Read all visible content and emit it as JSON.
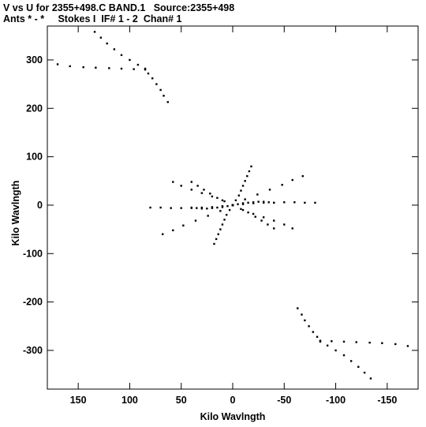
{
  "header": {
    "line1": "V vs U for 2355+498.C BAND.1   Source:2355+498",
    "line2": "Ants * - *     Stokes I  IF# 1 - 2  Chan# 1"
  },
  "chart_data": {
    "type": "scatter",
    "title": "V vs U for 2355+498.C BAND.1   Source:2355+498",
    "subtitle": "Ants * - *     Stokes I  IF# 1 - 2  Chan# 1",
    "xlabel": "Kilo Wavlngth",
    "ylabel": "Kilo Wavlngth",
    "xlim": [
      180,
      -180
    ],
    "ylim": [
      -380,
      370
    ],
    "x_axis_reversed": true,
    "xticks": [
      150,
      100,
      50,
      0,
      -50,
      -100,
      -150
    ],
    "xtick_labels": [
      "150",
      "100",
      "50",
      "0",
      "-50",
      "-100",
      "-150"
    ],
    "yticks": [
      300,
      200,
      100,
      0,
      -100,
      -200,
      -300
    ],
    "ytick_labels": [
      "300",
      "200",
      "100",
      "0",
      "-100",
      "-200",
      "-300"
    ],
    "grid": false,
    "legend": "none",
    "marker_color": "#000000",
    "series": [
      {
        "description_key": "uv-tracks-compact",
        "points": [
          [
            0,
            0
          ],
          [
            -5,
            2
          ],
          [
            -10,
            4
          ],
          [
            -15,
            5
          ],
          [
            -20,
            6
          ],
          [
            -25,
            7
          ],
          [
            -30,
            7
          ],
          [
            -35,
            6
          ],
          [
            -40,
            5
          ],
          [
            5,
            -2
          ],
          [
            10,
            -4
          ],
          [
            15,
            -5
          ],
          [
            20,
            -6
          ],
          [
            25,
            -7
          ],
          [
            30,
            -7
          ],
          [
            35,
            -6
          ],
          [
            40,
            -5
          ],
          [
            0,
            0
          ],
          [
            3,
            -10
          ],
          [
            6,
            -20
          ],
          [
            8,
            -30
          ],
          [
            10,
            -40
          ],
          [
            12,
            -50
          ],
          [
            14,
            -60
          ],
          [
            16,
            -70
          ],
          [
            18,
            -80
          ],
          [
            -3,
            10
          ],
          [
            -6,
            20
          ],
          [
            -8,
            30
          ],
          [
            -10,
            40
          ],
          [
            -12,
            50
          ],
          [
            -14,
            60
          ],
          [
            -16,
            70
          ],
          [
            -18,
            80
          ],
          [
            0,
            0
          ],
          [
            -8,
            -8
          ],
          [
            -15,
            -15
          ],
          [
            -22,
            -24
          ],
          [
            -28,
            -32
          ],
          [
            -34,
            -40
          ],
          [
            -40,
            -48
          ],
          [
            8,
            8
          ],
          [
            15,
            15
          ],
          [
            22,
            24
          ],
          [
            28,
            32
          ],
          [
            34,
            40
          ],
          [
            40,
            48
          ],
          [
            0,
            0
          ],
          [
            10,
            -2
          ],
          [
            20,
            -4
          ],
          [
            30,
            -5
          ],
          [
            40,
            -6
          ],
          [
            50,
            -6
          ],
          [
            60,
            -6
          ],
          [
            70,
            -5
          ],
          [
            80,
            -5
          ],
          [
            -10,
            2
          ],
          [
            -20,
            4
          ],
          [
            -30,
            5
          ],
          [
            -40,
            5
          ],
          [
            -50,
            6
          ],
          [
            -60,
            6
          ],
          [
            -70,
            5
          ],
          [
            -80,
            5
          ],
          [
            0,
            0
          ],
          [
            -10,
            -10
          ],
          [
            -20,
            -18
          ],
          [
            -30,
            -25
          ],
          [
            -40,
            -32
          ],
          [
            -50,
            -40
          ],
          [
            -58,
            -48
          ],
          [
            10,
            10
          ],
          [
            20,
            18
          ],
          [
            30,
            25
          ],
          [
            40,
            32
          ],
          [
            50,
            40
          ],
          [
            58,
            48
          ],
          [
            0,
            0
          ],
          [
            12,
            -12
          ],
          [
            24,
            -22
          ],
          [
            36,
            -32
          ],
          [
            48,
            -42
          ],
          [
            58,
            -52
          ],
          [
            68,
            -60
          ],
          [
            -12,
            12
          ],
          [
            -24,
            22
          ],
          [
            -36,
            32
          ],
          [
            -48,
            42
          ],
          [
            -58,
            52
          ],
          [
            -68,
            60
          ]
        ]
      },
      {
        "description_key": "uv-tracks-long-baselines",
        "points": [
          [
            170,
            291
          ],
          [
            158,
            287
          ],
          [
            145,
            285
          ],
          [
            133,
            284
          ],
          [
            120,
            283
          ],
          [
            108,
            282
          ],
          [
            96,
            281
          ],
          [
            85,
            280
          ],
          [
            82,
            272
          ],
          [
            78,
            262
          ],
          [
            74,
            250
          ],
          [
            70,
            238
          ],
          [
            67,
            226
          ],
          [
            63,
            213
          ],
          [
            85,
            282
          ],
          [
            92,
            290
          ],
          [
            100,
            300
          ],
          [
            108,
            310
          ],
          [
            115,
            322
          ],
          [
            122,
            334
          ],
          [
            128,
            346
          ],
          [
            134,
            358
          ],
          [
            -170,
            -291
          ],
          [
            -158,
            -287
          ],
          [
            -145,
            -285
          ],
          [
            -133,
            -284
          ],
          [
            -120,
            -283
          ],
          [
            -108,
            -282
          ],
          [
            -96,
            -281
          ],
          [
            -85,
            -280
          ],
          [
            -82,
            -272
          ],
          [
            -78,
            -262
          ],
          [
            -74,
            -250
          ],
          [
            -70,
            -238
          ],
          [
            -67,
            -226
          ],
          [
            -63,
            -213
          ],
          [
            -85,
            -282
          ],
          [
            -92,
            -290
          ],
          [
            -100,
            -300
          ],
          [
            -108,
            -310
          ],
          [
            -115,
            -322
          ],
          [
            -122,
            -334
          ],
          [
            -128,
            -346
          ],
          [
            -134,
            -358
          ]
        ]
      }
    ]
  }
}
